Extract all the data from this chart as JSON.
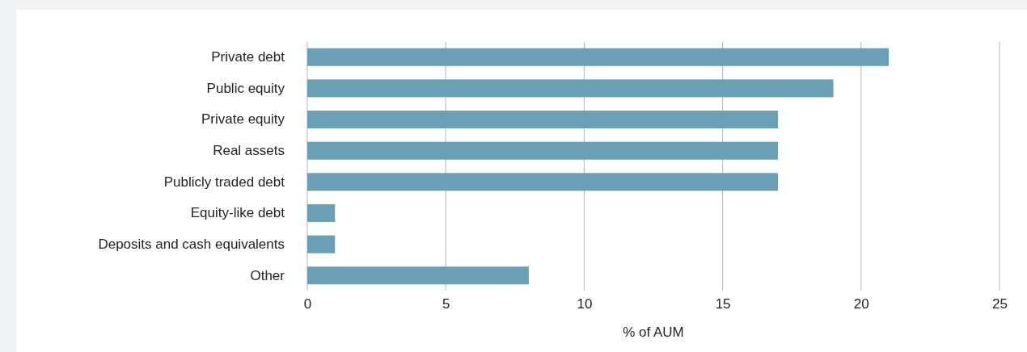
{
  "chart_data": {
    "type": "bar",
    "orientation": "horizontal",
    "xlabel": "% of AUM",
    "categories": [
      "Private debt",
      "Public equity",
      "Private equity",
      "Real assets",
      "Publicly traded debt",
      "Equity-like debt",
      "Deposits and cash equivalents",
      "Other"
    ],
    "values": [
      21,
      19,
      17,
      17,
      17,
      1,
      1,
      8
    ],
    "color": "#6a9fb5",
    "xlim": [
      0,
      25
    ],
    "xticks": [
      0,
      5,
      10,
      15,
      20,
      25
    ],
    "grid": "x"
  }
}
